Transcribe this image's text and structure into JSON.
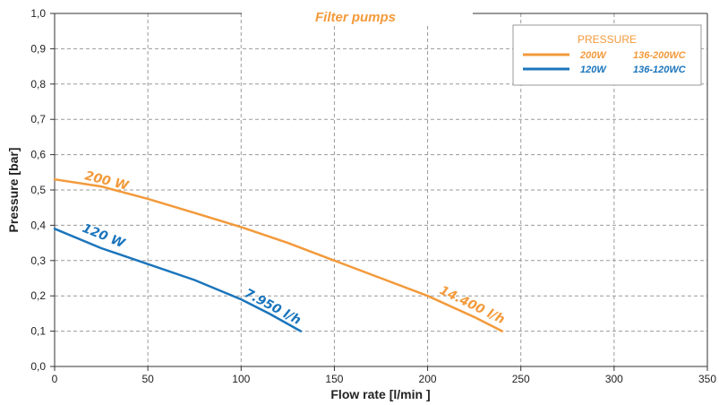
{
  "chart_data": {
    "type": "line",
    "title": "Filter pumps",
    "xlabel": "Flow rate [l/min ]",
    "ylabel": "Pressure [bar]",
    "xlim": [
      0,
      350
    ],
    "ylim": [
      0,
      1.0
    ],
    "x_ticks": [
      "0",
      "50",
      "100",
      "150",
      "200",
      "250",
      "300",
      "350"
    ],
    "y_ticks": [
      "0,0",
      "0,1",
      "0,2",
      "0,3",
      "0,4",
      "0,5",
      "0,6",
      "0,7",
      "0,8",
      "0,9",
      "1,0"
    ],
    "grid": true,
    "legend": {
      "title": "PRESSURE",
      "position": "top-right",
      "entries": [
        {
          "name": "200W",
          "model": "136-200WC"
        },
        {
          "name": "120W",
          "model": "136-120WC"
        }
      ]
    },
    "series": [
      {
        "name": "200W",
        "color": "#f39a3b",
        "label": "200 W",
        "end_label": "14.400 l/h",
        "x": [
          0,
          25,
          50,
          75,
          100,
          125,
          150,
          175,
          200,
          225,
          240
        ],
        "y": [
          0.53,
          0.51,
          0.475,
          0.435,
          0.395,
          0.35,
          0.3,
          0.25,
          0.2,
          0.14,
          0.1
        ]
      },
      {
        "name": "120W",
        "color": "#1b75bc",
        "label": "120 W",
        "end_label": "7.950 l/h",
        "x": [
          0,
          25,
          50,
          75,
          100,
          115,
          132
        ],
        "y": [
          0.39,
          0.335,
          0.29,
          0.245,
          0.19,
          0.15,
          0.1
        ]
      }
    ]
  }
}
